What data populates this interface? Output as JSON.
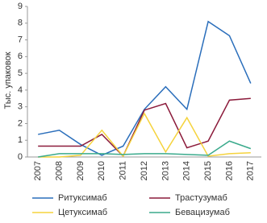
{
  "chart_data": {
    "type": "line",
    "y_label": "Тыс. упаковок",
    "categories": [
      "2007",
      "2008",
      "2009",
      "2010",
      "2011",
      "2012",
      "2013",
      "2014",
      "2015",
      "2016",
      "2017"
    ],
    "series": [
      {
        "name": "Ритуксимаб",
        "color": "#2a6ebb",
        "values": [
          1.35,
          1.6,
          0.75,
          0.1,
          0.65,
          2.85,
          4.2,
          2.85,
          8.1,
          7.25,
          4.4
        ]
      },
      {
        "name": "Трастузумаб",
        "color": "#8b1a3a",
        "values": [
          0.65,
          0.65,
          0.65,
          1.35,
          0.05,
          2.8,
          3.2,
          0.55,
          0.95,
          3.4,
          3.5
        ]
      },
      {
        "name": "Цетуксимаб",
        "color": "#f5d33d",
        "values": [
          0,
          0,
          0.1,
          1.6,
          0.05,
          2.6,
          0.3,
          2.35,
          0.05,
          0.2,
          0.25
        ]
      },
      {
        "name": "Бевацизумаб",
        "color": "#3aaa8c",
        "values": [
          0,
          0.2,
          0.2,
          0.2,
          0.15,
          0.2,
          0.2,
          0.15,
          0.1,
          0.95,
          0.5
        ]
      }
    ],
    "ylim": [
      0,
      9
    ],
    "yticks": [
      0,
      1,
      2,
      3,
      4,
      5,
      6,
      7,
      8,
      9
    ],
    "grid": false
  }
}
